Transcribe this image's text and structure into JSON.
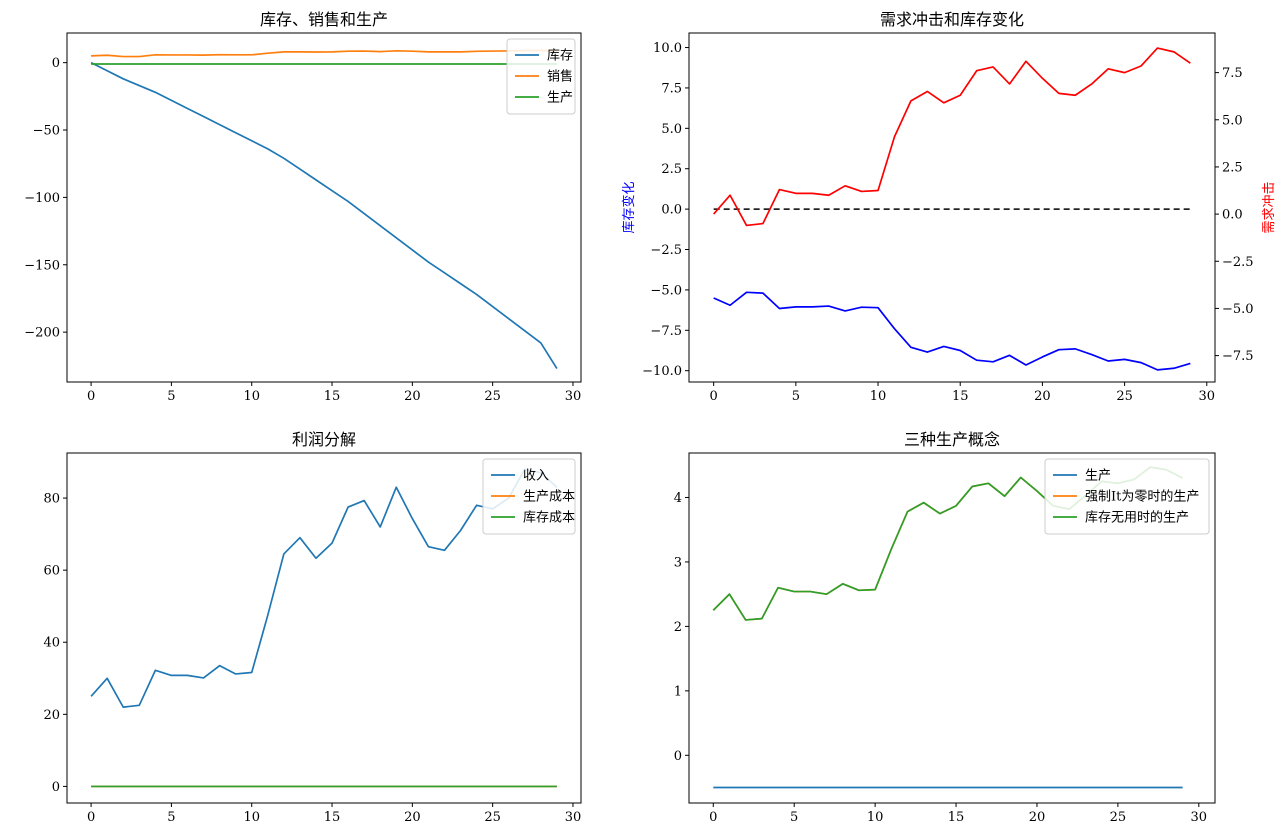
{
  "chart_data": [
    {
      "type": "line",
      "title": "库存、销售和生产",
      "xlim": [
        -1.5,
        30.5
      ],
      "ylim": [
        -237,
        22
      ],
      "xticks": [
        0,
        5,
        10,
        15,
        20,
        25,
        30
      ],
      "yticks": [
        0,
        -50,
        -100,
        -150,
        -200
      ],
      "legend": "top-right",
      "x": [
        0,
        1,
        2,
        3,
        4,
        5,
        6,
        7,
        8,
        9,
        10,
        11,
        12,
        13,
        14,
        15,
        16,
        17,
        18,
        19,
        20,
        21,
        22,
        23,
        24,
        25,
        26,
        27,
        28,
        29
      ],
      "series": [
        {
          "name": "库存",
          "color": "#1f77b4",
          "values": [
            0,
            -6,
            -12,
            -17,
            -22,
            -28,
            -34,
            -40,
            -46,
            -52,
            -58,
            -64,
            -71,
            -79,
            -87,
            -95,
            -103,
            -112,
            -121,
            -130,
            -139,
            -148,
            -156,
            -164,
            -172,
            -181,
            -190,
            -199,
            -208,
            -227
          ]
        },
        {
          "name": "销售",
          "color": "#ff7f0e",
          "values": [
            5,
            5.5,
            4.5,
            4.5,
            5.8,
            5.7,
            5.7,
            5.6,
            5.9,
            5.8,
            5.8,
            7,
            8,
            8,
            7.9,
            8,
            8.5,
            8.6,
            8.2,
            8.8,
            8.5,
            8,
            8,
            8,
            8.4,
            8.6,
            8.7,
            9,
            9,
            8.8
          ]
        },
        {
          "name": "生产",
          "color": "#2ca02c",
          "values": [
            -1,
            -1,
            -1,
            -1,
            -1,
            -1,
            -1,
            -1,
            -1,
            -1,
            -1,
            -1,
            -1,
            -1,
            -1,
            -1,
            -1,
            -1,
            -1,
            -1,
            -1,
            -1,
            -1,
            -1,
            -1,
            -1,
            -1,
            -1,
            -1,
            -1
          ]
        }
      ]
    },
    {
      "type": "line",
      "title": "需求冲击和库存变化",
      "ylabel_left": "库存变化",
      "ylabel_right": "需求冲击",
      "xlim": [
        -1.5,
        30.5
      ],
      "ylim_left": [
        -10.7,
        10.9
      ],
      "ylim_right": [
        -8.9,
        9.6
      ],
      "xticks": [
        0,
        5,
        10,
        15,
        20,
        25,
        30
      ],
      "yticks_left": [
        10.0,
        7.5,
        5.0,
        2.5,
        0.0,
        -2.5,
        -5.0,
        -7.5,
        -10.0
      ],
      "yticks_left_labels": [
        "10.0",
        "7.5",
        "5.0",
        "2.5",
        "0.0",
        "−2.5",
        "−5.0",
        "−7.5",
        "−10.0"
      ],
      "yticks_right": [
        7.5,
        5.0,
        2.5,
        0.0,
        -2.5,
        -5.0,
        -7.5
      ],
      "yticks_right_labels": [
        "7.5",
        "5.0",
        "2.5",
        "0.0",
        "−2.5",
        "−5.0",
        "−7.5"
      ],
      "x": [
        0,
        1,
        2,
        3,
        4,
        5,
        6,
        7,
        8,
        9,
        10,
        11,
        12,
        13,
        14,
        15,
        16,
        17,
        18,
        19,
        20,
        21,
        22,
        23,
        24,
        25,
        26,
        27,
        28,
        29
      ],
      "zero_line": {
        "color": "#000000",
        "value": 0
      },
      "series": [
        {
          "name": "库存变化",
          "axis": "left",
          "color": "#0000ff",
          "values": [
            -5.5,
            -5.95,
            -5.15,
            -5.2,
            -6.15,
            -6.05,
            -6.05,
            -6.0,
            -6.3,
            -6.07,
            -6.1,
            -7.4,
            -8.55,
            -8.85,
            -8.5,
            -8.75,
            -9.35,
            -9.45,
            -9.05,
            -9.65,
            -9.15,
            -8.7,
            -8.65,
            -9.0,
            -9.4,
            -9.3,
            -9.5,
            -9.95,
            -9.85,
            -9.55
          ]
        },
        {
          "name": "需求冲击",
          "axis": "right",
          "color": "#ff0000",
          "values": [
            0,
            1.0,
            -0.6,
            -0.5,
            1.3,
            1.1,
            1.1,
            1.0,
            1.5,
            1.2,
            1.25,
            4.1,
            6.0,
            6.5,
            5.9,
            6.3,
            7.6,
            7.8,
            6.9,
            8.1,
            7.2,
            6.4,
            6.3,
            6.9,
            7.7,
            7.5,
            7.85,
            8.8,
            8.6,
            8.0
          ]
        }
      ]
    },
    {
      "type": "line",
      "title": "利润分解",
      "xlim": [
        -1.5,
        30.5
      ],
      "ylim": [
        -4.6,
        92.5
      ],
      "xticks": [
        0,
        5,
        10,
        15,
        20,
        25,
        30
      ],
      "yticks": [
        0,
        20,
        40,
        60,
        80
      ],
      "legend": "top-right",
      "x": [
        0,
        1,
        2,
        3,
        4,
        5,
        6,
        7,
        8,
        9,
        10,
        11,
        12,
        13,
        14,
        15,
        16,
        17,
        18,
        19,
        20,
        21,
        22,
        23,
        24,
        25,
        26,
        27,
        28,
        29
      ],
      "series": [
        {
          "name": "收入",
          "color": "#1f77b4",
          "values": [
            25,
            30,
            22,
            22.5,
            32.2,
            30.8,
            30.8,
            30.1,
            33.5,
            31.2,
            31.6,
            47.5,
            64.5,
            69,
            63.3,
            67.5,
            77.5,
            79.3,
            72,
            83,
            74.3,
            66.5,
            65.5,
            71,
            78,
            77,
            80,
            88,
            87,
            83
          ]
        },
        {
          "name": "生产成本",
          "color": "#ff7f0e",
          "values": [
            0,
            0,
            0,
            0,
            0,
            0,
            0,
            0,
            0,
            0,
            0,
            0,
            0,
            0,
            0,
            0,
            0,
            0,
            0,
            0,
            0,
            0,
            0,
            0,
            0,
            0,
            0,
            0,
            0,
            0
          ]
        },
        {
          "name": "库存成本",
          "color": "#2ca02c",
          "values": [
            0,
            0,
            0,
            0,
            0,
            0,
            0,
            0,
            0,
            0,
            0,
            0,
            0,
            0,
            0,
            0,
            0,
            0,
            0,
            0,
            0,
            0,
            0,
            0,
            0,
            0,
            0,
            0,
            0,
            0
          ]
        }
      ]
    },
    {
      "type": "line",
      "title": "三种生产概念",
      "xlim": [
        -1.5,
        31.0
      ],
      "ylim": [
        -0.74,
        4.69
      ],
      "xticks": [
        0,
        5,
        10,
        15,
        20,
        25,
        30
      ],
      "yticks": [
        0,
        1,
        2,
        3,
        4
      ],
      "legend": "top-right",
      "x": [
        0,
        1,
        2,
        3,
        4,
        5,
        6,
        7,
        8,
        9,
        10,
        11,
        12,
        13,
        14,
        15,
        16,
        17,
        18,
        19,
        20,
        21,
        22,
        23,
        24,
        25,
        26,
        27,
        28,
        29
      ],
      "series": [
        {
          "name": "生产",
          "color": "#1f77b4",
          "values": [
            -0.5,
            -0.5,
            -0.5,
            -0.5,
            -0.5,
            -0.5,
            -0.5,
            -0.5,
            -0.5,
            -0.5,
            -0.5,
            -0.5,
            -0.5,
            -0.5,
            -0.5,
            -0.5,
            -0.5,
            -0.5,
            -0.5,
            -0.5,
            -0.5,
            -0.5,
            -0.5,
            -0.5,
            -0.5,
            -0.5,
            -0.5,
            -0.5,
            -0.5,
            -0.5
          ]
        },
        {
          "name": "强制It为零时的生产",
          "color": "#ff7f0e",
          "values": [
            2.25,
            2.5,
            2.1,
            2.12,
            2.6,
            2.54,
            2.54,
            2.5,
            2.66,
            2.56,
            2.57,
            3.2,
            3.78,
            3.92,
            3.75,
            3.87,
            4.17,
            4.22,
            4.02,
            4.31,
            4.1,
            3.87,
            3.82,
            4.03,
            4.25,
            4.22,
            4.28,
            4.47,
            4.43,
            4.3
          ]
        },
        {
          "name": "库存无用时的生产",
          "color": "#2ca02c",
          "values": [
            2.25,
            2.5,
            2.1,
            2.12,
            2.6,
            2.54,
            2.54,
            2.5,
            2.66,
            2.56,
            2.57,
            3.2,
            3.78,
            3.92,
            3.75,
            3.87,
            4.17,
            4.22,
            4.02,
            4.31,
            4.1,
            3.87,
            3.82,
            4.03,
            4.25,
            4.22,
            4.28,
            4.47,
            4.43,
            4.3
          ]
        }
      ]
    }
  ]
}
